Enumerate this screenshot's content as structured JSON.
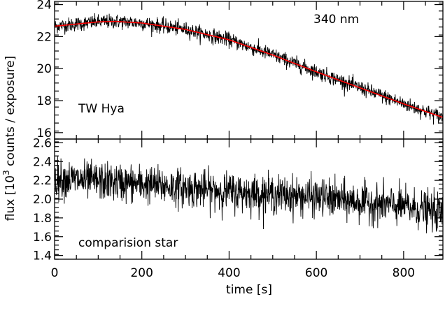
{
  "chart_data": [
    {
      "type": "line",
      "panel": "top",
      "annotation_wavelength": "340 nm",
      "annotation_object": "TW Hya",
      "xlim": [
        0,
        890
      ],
      "ylim": [
        15.6,
        24.2
      ],
      "yticks": [
        16,
        18,
        20,
        22,
        24
      ],
      "series": [
        {
          "kind": "noisy-data",
          "color": "#000000",
          "noise_amplitude": 0.45,
          "baseline_x": [
            0,
            100,
            140,
            200,
            300,
            400,
            500,
            600,
            700,
            800,
            890
          ],
          "baseline_y": [
            22.65,
            22.92,
            22.95,
            22.85,
            22.45,
            21.8,
            20.85,
            19.8,
            18.8,
            17.8,
            16.95
          ]
        },
        {
          "kind": "fit",
          "color": "#ff0000",
          "x": [
            0,
            100,
            140,
            200,
            300,
            400,
            500,
            600,
            700,
            800,
            890
          ],
          "y": [
            22.65,
            22.92,
            22.95,
            22.85,
            22.45,
            21.8,
            20.85,
            19.8,
            18.8,
            17.8,
            16.95
          ]
        }
      ]
    },
    {
      "type": "line",
      "panel": "bottom",
      "annotation_object": "comparision star",
      "xlim": [
        0,
        890
      ],
      "ylim": [
        1.36,
        2.64
      ],
      "yticks": [
        1.4,
        1.6,
        1.8,
        2.0,
        2.2,
        2.4,
        2.6
      ],
      "xticks": [
        0,
        200,
        400,
        600,
        800
      ],
      "series": [
        {
          "kind": "noisy-data",
          "color": "#000000",
          "noise_amplitude": 0.2,
          "baseline_x": [
            0,
            200,
            400,
            600,
            800,
            890
          ],
          "baseline_y": [
            2.22,
            2.16,
            2.08,
            2.02,
            1.92,
            1.85
          ]
        }
      ]
    }
  ],
  "axes": {
    "xlabel": "time [s]",
    "ylabel_prefix": "flux [10",
    "ylabel_sup": "3",
    "ylabel_suffix": " counts / exposure]"
  }
}
